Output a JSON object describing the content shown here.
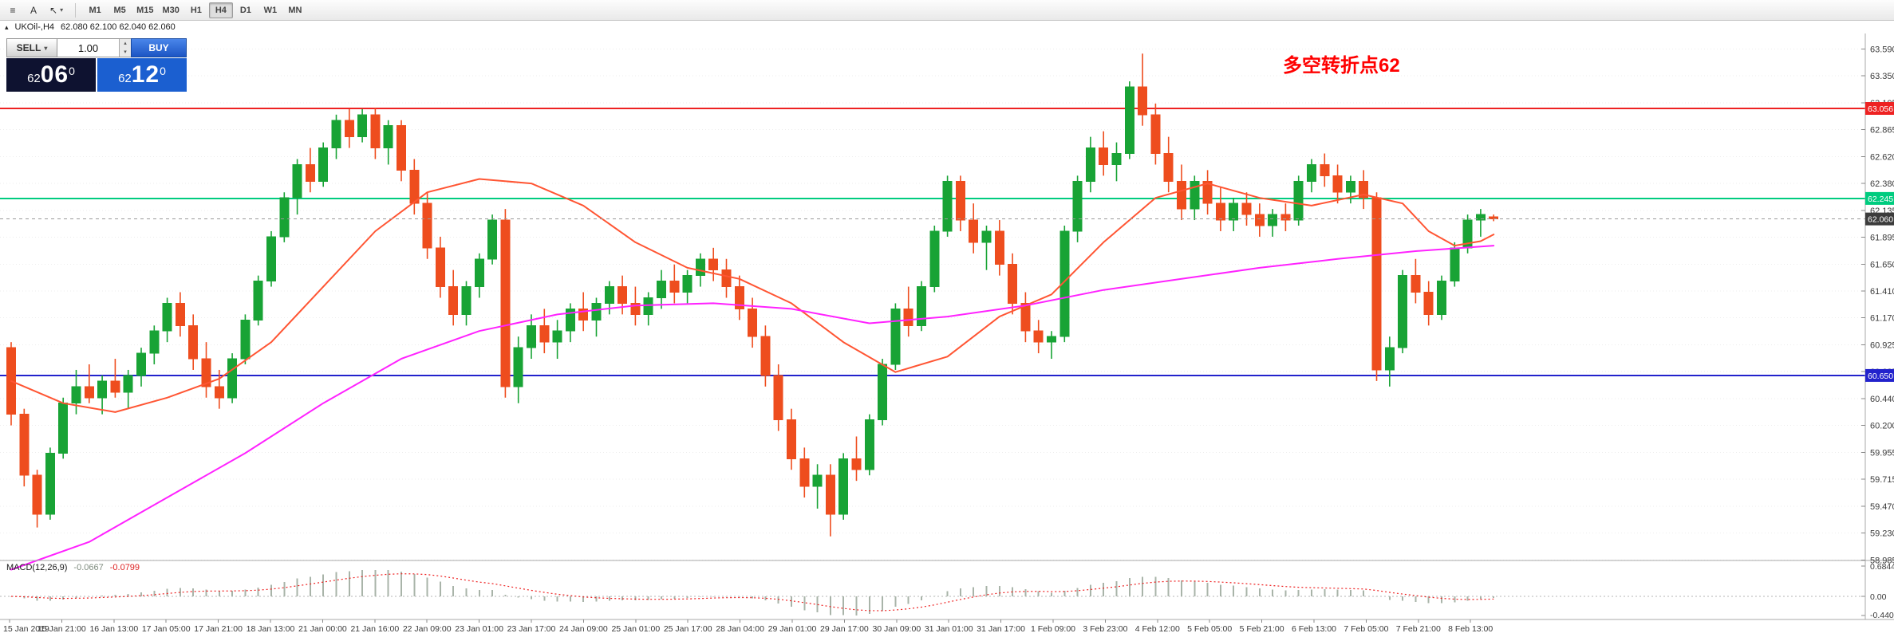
{
  "toolbar": {
    "menu_icon": "≡",
    "text_tool_label": "A",
    "cursor_icon": "↖",
    "dropdown_icon": "▾",
    "timeframes": [
      "M1",
      "M5",
      "M15",
      "M30",
      "H1",
      "H4",
      "D1",
      "W1",
      "MN"
    ],
    "active_timeframe": "H4"
  },
  "quote_bar": {
    "collapse_icon": "▴",
    "symbol_period": "UKOil-,H4",
    "ohlc": "62.080 62.100 62.040 62.060"
  },
  "trade_panel": {
    "sell_label": "SELL",
    "buy_label": "BUY",
    "volume": "1.00",
    "spin_up_icon": "▴",
    "spin_down_icon": "▾",
    "dropdown_icon": "▾",
    "bid": {
      "prefix": "62",
      "big": "06",
      "sup": "0"
    },
    "ask": {
      "prefix": "62",
      "big": "12",
      "sup": "0"
    },
    "colors": {
      "bid_bg": "#0e1230",
      "ask_bg": "#1b5fd0"
    }
  },
  "annotation": {
    "text": "多空转折点62",
    "color": "#ff0000"
  },
  "chart_data": {
    "type": "candlestick",
    "symbol": "UKOil-",
    "period": "H4",
    "ohlc_display": "62.080 62.100 62.040 62.060",
    "colors": {
      "up": "#18a335",
      "down": "#ee4d1e",
      "ma_fast": "#ff5533",
      "ma_slow": "#ff22ff",
      "hline_red": "#ee2222",
      "hline_green": "#00cc7f",
      "hline_blue": "#2222cc",
      "current_tag": "#3c3c3c",
      "current_line": "#999999",
      "macd_hist": "#a9b4a9",
      "macd_signal": "#ee2222",
      "axis_text": "#3a3a3a",
      "grid": "#ededed",
      "separator": "#a8a8a8"
    },
    "price_axis": {
      "labels": [
        "63.590",
        "63.350",
        "63.105",
        "62.865",
        "62.620",
        "62.380",
        "62.135",
        "61.895",
        "61.650",
        "61.410",
        "61.170",
        "60.925",
        "60.685",
        "60.440",
        "60.200",
        "59.955",
        "59.715",
        "59.470",
        "59.230",
        "58.985"
      ]
    },
    "time_axis": {
      "labels": [
        "15 Jan 2019",
        "15 Jan 21:00",
        "16 Jan 13:00",
        "17 Jan 05:00",
        "17 Jan 21:00",
        "18 Jan 13:00",
        "21 Jan 00:00",
        "21 Jan 16:00",
        "22 Jan 09:00",
        "23 Jan 01:00",
        "23 Jan 17:00",
        "24 Jan 09:00",
        "25 Jan 01:00",
        "25 Jan 17:00",
        "28 Jan 04:00",
        "29 Jan 01:00",
        "29 Jan 17:00",
        "30 Jan 09:00",
        "31 Jan 01:00",
        "31 Jan 17:00",
        "1 Feb 09:00",
        "3 Feb 23:00",
        "4 Feb 12:00",
        "5 Feb 05:00",
        "5 Feb 21:00",
        "6 Feb 13:00",
        "7 Feb 05:00",
        "7 Feb 21:00",
        "8 Feb 13:00"
      ]
    },
    "hlines": [
      {
        "price": 63.056,
        "label": "63.056",
        "color": "#ee2222"
      },
      {
        "price": 62.245,
        "label": "62.245",
        "color": "#00cc7f"
      },
      {
        "price": 60.65,
        "label": "60.650",
        "color": "#2222cc"
      }
    ],
    "current_price": {
      "value": 62.06,
      "label": "62.060"
    },
    "candles": [
      [
        60.9,
        60.95,
        60.2,
        60.3
      ],
      [
        60.3,
        60.35,
        59.65,
        59.75
      ],
      [
        59.75,
        59.8,
        59.28,
        59.4
      ],
      [
        59.4,
        60.0,
        59.35,
        59.95
      ],
      [
        59.95,
        60.45,
        59.9,
        60.4
      ],
      [
        60.4,
        60.7,
        60.3,
        60.55
      ],
      [
        60.55,
        60.75,
        60.4,
        60.45
      ],
      [
        60.45,
        60.65,
        60.3,
        60.6
      ],
      [
        60.6,
        60.8,
        60.45,
        60.5
      ],
      [
        60.5,
        60.7,
        60.35,
        60.65
      ],
      [
        60.65,
        60.9,
        60.55,
        60.85
      ],
      [
        60.85,
        61.1,
        60.75,
        61.05
      ],
      [
        61.05,
        61.35,
        60.95,
        61.3
      ],
      [
        61.3,
        61.4,
        61.0,
        61.1
      ],
      [
        61.1,
        61.2,
        60.7,
        60.8
      ],
      [
        60.8,
        60.95,
        60.45,
        60.55
      ],
      [
        60.55,
        60.7,
        60.35,
        60.45
      ],
      [
        60.45,
        60.85,
        60.4,
        60.8
      ],
      [
        60.8,
        61.2,
        60.75,
        61.15
      ],
      [
        61.15,
        61.55,
        61.1,
        61.5
      ],
      [
        61.5,
        61.95,
        61.45,
        61.9
      ],
      [
        61.9,
        62.3,
        61.85,
        62.25
      ],
      [
        62.25,
        62.6,
        62.1,
        62.55
      ],
      [
        62.55,
        62.7,
        62.3,
        62.4
      ],
      [
        62.4,
        62.75,
        62.35,
        62.7
      ],
      [
        62.7,
        63.0,
        62.6,
        62.95
      ],
      [
        62.95,
        63.05,
        62.7,
        62.8
      ],
      [
        62.8,
        63.05,
        62.75,
        63.0
      ],
      [
        63.0,
        63.06,
        62.6,
        62.7
      ],
      [
        62.7,
        62.95,
        62.55,
        62.9
      ],
      [
        62.9,
        62.95,
        62.4,
        62.5
      ],
      [
        62.5,
        62.6,
        62.1,
        62.2
      ],
      [
        62.2,
        62.3,
        61.7,
        61.8
      ],
      [
        61.8,
        61.9,
        61.35,
        61.45
      ],
      [
        61.45,
        61.6,
        61.1,
        61.2
      ],
      [
        61.2,
        61.5,
        61.1,
        61.45
      ],
      [
        61.45,
        61.75,
        61.35,
        61.7
      ],
      [
        61.7,
        62.1,
        61.65,
        62.05
      ],
      [
        62.05,
        62.15,
        60.45,
        60.55
      ],
      [
        60.55,
        61.0,
        60.4,
        60.9
      ],
      [
        60.9,
        61.2,
        60.8,
        61.1
      ],
      [
        61.1,
        61.25,
        60.85,
        60.95
      ],
      [
        60.95,
        61.15,
        60.8,
        61.05
      ],
      [
        61.05,
        61.3,
        60.95,
        61.25
      ],
      [
        61.25,
        61.4,
        61.05,
        61.15
      ],
      [
        61.15,
        61.35,
        61.0,
        61.3
      ],
      [
        61.3,
        61.5,
        61.2,
        61.45
      ],
      [
        61.45,
        61.55,
        61.2,
        61.3
      ],
      [
        61.3,
        61.45,
        61.1,
        61.2
      ],
      [
        61.2,
        61.4,
        61.1,
        61.35
      ],
      [
        61.35,
        61.6,
        61.25,
        61.5
      ],
      [
        61.5,
        61.65,
        61.3,
        61.4
      ],
      [
        61.4,
        61.6,
        61.3,
        61.55
      ],
      [
        61.55,
        61.75,
        61.45,
        61.7
      ],
      [
        61.7,
        61.8,
        61.5,
        61.6
      ],
      [
        61.6,
        61.7,
        61.35,
        61.45
      ],
      [
        61.45,
        61.55,
        61.15,
        61.25
      ],
      [
        61.25,
        61.35,
        60.9,
        61.0
      ],
      [
        61.0,
        61.1,
        60.55,
        60.65
      ],
      [
        60.65,
        60.75,
        60.15,
        60.25
      ],
      [
        60.25,
        60.35,
        59.8,
        59.9
      ],
      [
        59.9,
        60.0,
        59.55,
        59.65
      ],
      [
        59.65,
        59.85,
        59.45,
        59.75
      ],
      [
        59.75,
        59.85,
        59.2,
        59.4
      ],
      [
        59.4,
        59.95,
        59.35,
        59.9
      ],
      [
        59.9,
        60.1,
        59.7,
        59.8
      ],
      [
        59.8,
        60.3,
        59.75,
        60.25
      ],
      [
        60.25,
        60.8,
        60.2,
        60.75
      ],
      [
        60.75,
        61.3,
        60.7,
        61.25
      ],
      [
        61.25,
        61.45,
        61.0,
        61.1
      ],
      [
        61.1,
        61.5,
        61.05,
        61.45
      ],
      [
        61.45,
        62.0,
        61.4,
        61.95
      ],
      [
        61.95,
        62.45,
        61.9,
        62.4
      ],
      [
        62.4,
        62.45,
        61.95,
        62.05
      ],
      [
        62.05,
        62.2,
        61.75,
        61.85
      ],
      [
        61.85,
        62.0,
        61.6,
        61.95
      ],
      [
        61.95,
        62.05,
        61.55,
        61.65
      ],
      [
        61.65,
        61.75,
        61.2,
        61.3
      ],
      [
        61.3,
        61.4,
        60.95,
        61.05
      ],
      [
        61.05,
        61.15,
        60.85,
        60.95
      ],
      [
        60.95,
        61.05,
        60.8,
        61.0
      ],
      [
        61.0,
        62.0,
        60.95,
        61.95
      ],
      [
        61.95,
        62.45,
        61.85,
        62.4
      ],
      [
        62.4,
        62.8,
        62.3,
        62.7
      ],
      [
        62.7,
        62.85,
        62.45,
        62.55
      ],
      [
        62.55,
        62.75,
        62.4,
        62.65
      ],
      [
        62.65,
        63.3,
        62.6,
        63.25
      ],
      [
        63.25,
        63.55,
        62.9,
        63.0
      ],
      [
        63.0,
        63.1,
        62.55,
        62.65
      ],
      [
        62.65,
        62.8,
        62.3,
        62.4
      ],
      [
        62.4,
        62.55,
        62.05,
        62.15
      ],
      [
        62.15,
        62.45,
        62.05,
        62.4
      ],
      [
        62.4,
        62.5,
        62.1,
        62.2
      ],
      [
        62.2,
        62.35,
        61.95,
        62.05
      ],
      [
        62.05,
        62.25,
        61.95,
        62.2
      ],
      [
        62.2,
        62.3,
        62.0,
        62.1
      ],
      [
        62.1,
        62.2,
        61.9,
        62.0
      ],
      [
        62.0,
        62.15,
        61.9,
        62.1
      ],
      [
        62.1,
        62.2,
        61.95,
        62.05
      ],
      [
        62.05,
        62.45,
        62.0,
        62.4
      ],
      [
        62.4,
        62.6,
        62.3,
        62.55
      ],
      [
        62.55,
        62.65,
        62.35,
        62.45
      ],
      [
        62.45,
        62.55,
        62.2,
        62.3
      ],
      [
        62.3,
        62.45,
        62.2,
        62.4
      ],
      [
        62.4,
        62.5,
        62.15,
        62.25
      ],
      [
        62.25,
        62.3,
        60.6,
        60.7
      ],
      [
        60.7,
        61.0,
        60.55,
        60.9
      ],
      [
        60.9,
        61.6,
        60.85,
        61.55
      ],
      [
        61.55,
        61.7,
        61.3,
        61.4
      ],
      [
        61.4,
        61.5,
        61.1,
        61.2
      ],
      [
        61.2,
        61.55,
        61.15,
        61.5
      ],
      [
        61.5,
        61.85,
        61.45,
        61.8
      ],
      [
        61.8,
        62.1,
        61.75,
        62.05
      ],
      [
        62.05,
        62.15,
        61.9,
        62.1
      ],
      [
        62.08,
        62.1,
        62.04,
        62.06
      ]
    ],
    "ma_fast_points": [
      [
        0,
        60.6
      ],
      [
        4,
        60.4
      ],
      [
        8,
        60.32
      ],
      [
        12,
        60.45
      ],
      [
        16,
        60.62
      ],
      [
        20,
        60.95
      ],
      [
        24,
        61.45
      ],
      [
        28,
        61.95
      ],
      [
        32,
        62.3
      ],
      [
        36,
        62.42
      ],
      [
        40,
        62.38
      ],
      [
        44,
        62.18
      ],
      [
        48,
        61.85
      ],
      [
        52,
        61.62
      ],
      [
        56,
        61.52
      ],
      [
        60,
        61.3
      ],
      [
        64,
        60.95
      ],
      [
        68,
        60.68
      ],
      [
        72,
        60.82
      ],
      [
        76,
        61.18
      ],
      [
        80,
        61.38
      ],
      [
        84,
        61.85
      ],
      [
        88,
        62.25
      ],
      [
        92,
        62.38
      ],
      [
        96,
        62.25
      ],
      [
        100,
        62.18
      ],
      [
        104,
        62.28
      ],
      [
        107,
        62.2
      ],
      [
        109,
        61.95
      ],
      [
        111,
        61.82
      ],
      [
        113,
        61.86
      ],
      [
        114,
        61.92
      ]
    ],
    "ma_slow_points": [
      [
        0,
        58.9
      ],
      [
        6,
        59.15
      ],
      [
        12,
        59.55
      ],
      [
        18,
        59.95
      ],
      [
        24,
        60.4
      ],
      [
        30,
        60.8
      ],
      [
        36,
        61.05
      ],
      [
        42,
        61.2
      ],
      [
        48,
        61.28
      ],
      [
        54,
        61.3
      ],
      [
        60,
        61.25
      ],
      [
        66,
        61.12
      ],
      [
        72,
        61.18
      ],
      [
        78,
        61.28
      ],
      [
        84,
        61.42
      ],
      [
        90,
        61.52
      ],
      [
        96,
        61.62
      ],
      [
        102,
        61.7
      ],
      [
        108,
        61.77
      ],
      [
        114,
        61.82
      ]
    ],
    "macd": {
      "label": "MACD(12,26,9)",
      "value": "-0.0667",
      "signal_value": "-0.0799",
      "axis_labels": [
        "0.6844",
        "0.00",
        "-0.4406"
      ]
    }
  }
}
